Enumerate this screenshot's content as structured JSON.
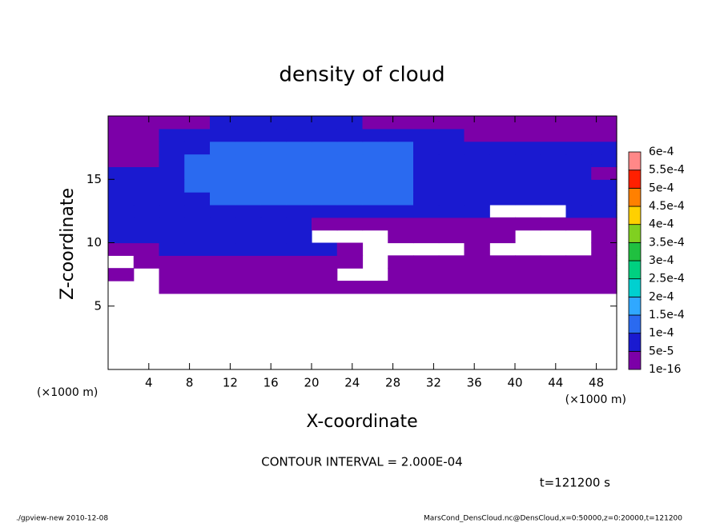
{
  "chart_data": {
    "type": "heatmap",
    "title": "density of cloud",
    "xlabel": "X-coordinate",
    "ylabel": "Z-coordinate",
    "x_unit": "(×1000 m)",
    "y_unit": "(×1000 m)",
    "xlim": [
      0,
      50
    ],
    "ylim": [
      0,
      20
    ],
    "xticks": [
      4,
      8,
      12,
      16,
      20,
      24,
      28,
      32,
      36,
      40,
      44,
      48
    ],
    "yticks": [
      5,
      10,
      15
    ],
    "x": [
      1.25,
      3.75,
      6.25,
      8.75,
      11.25,
      13.75,
      16.25,
      18.75,
      21.25,
      23.75,
      26.25,
      28.75,
      31.25,
      33.75,
      36.25,
      38.75,
      41.25,
      43.75,
      46.25,
      48.75
    ],
    "y": [
      0.5,
      1.5,
      2.5,
      3.5,
      4.5,
      5.5,
      6.5,
      7.5,
      8.5,
      9.5,
      10.5,
      11.5,
      12.5,
      13.5,
      14.5,
      15.5,
      16.5,
      17.5,
      18.5,
      19.5
    ],
    "z": [
      [
        null,
        null,
        null,
        null,
        null,
        null,
        null,
        null,
        null,
        null,
        null,
        null,
        null,
        null,
        null,
        null,
        null,
        null,
        null,
        null
      ],
      [
        null,
        null,
        null,
        null,
        null,
        null,
        null,
        null,
        null,
        null,
        null,
        null,
        null,
        null,
        null,
        null,
        null,
        null,
        null,
        null
      ],
      [
        null,
        null,
        null,
        null,
        null,
        null,
        null,
        null,
        null,
        null,
        null,
        null,
        null,
        null,
        null,
        null,
        null,
        null,
        null,
        null
      ],
      [
        null,
        null,
        null,
        null,
        null,
        null,
        null,
        null,
        null,
        null,
        null,
        null,
        null,
        null,
        null,
        null,
        null,
        null,
        null,
        null
      ],
      [
        null,
        null,
        null,
        null,
        null,
        null,
        null,
        null,
        null,
        null,
        null,
        null,
        null,
        null,
        null,
        null,
        null,
        null,
        null,
        null
      ],
      [
        null,
        null,
        null,
        null,
        null,
        null,
        null,
        null,
        null,
        null,
        null,
        null,
        null,
        null,
        null,
        null,
        null,
        null,
        null,
        null
      ],
      [
        null,
        null,
        3e-05,
        3e-05,
        3e-05,
        3e-05,
        3e-05,
        3e-05,
        3e-05,
        3e-05,
        3e-05,
        3e-05,
        3e-05,
        3e-05,
        3e-05,
        3e-05,
        3e-05,
        3e-05,
        3e-05,
        3e-05
      ],
      [
        3e-05,
        null,
        3e-05,
        3e-05,
        3e-05,
        3e-05,
        3e-05,
        3e-05,
        3e-05,
        null,
        null,
        3e-05,
        3e-05,
        3e-05,
        3e-05,
        3e-05,
        3e-05,
        3e-05,
        3e-05,
        3e-05
      ],
      [
        null,
        3e-05,
        3e-05,
        3e-05,
        3e-05,
        3e-05,
        3e-05,
        3e-05,
        3e-05,
        3e-05,
        null,
        3e-05,
        3e-05,
        3e-05,
        3e-05,
        3e-05,
        3e-05,
        3e-05,
        3e-05,
        3e-05
      ],
      [
        3e-05,
        3e-05,
        8e-05,
        8e-05,
        8e-05,
        8e-05,
        8e-05,
        8e-05,
        8e-05,
        3e-05,
        null,
        null,
        null,
        null,
        3e-05,
        null,
        null,
        null,
        null,
        3e-05
      ],
      [
        8e-05,
        8e-05,
        8e-05,
        8e-05,
        8e-05,
        8e-05,
        8e-05,
        8e-05,
        null,
        null,
        null,
        3e-05,
        3e-05,
        3e-05,
        3e-05,
        3e-05,
        null,
        null,
        null,
        3e-05
      ],
      [
        8e-05,
        8e-05,
        8e-05,
        8e-05,
        8e-05,
        8e-05,
        8e-05,
        8e-05,
        3e-05,
        3e-05,
        3e-05,
        3e-05,
        3e-05,
        3e-05,
        3e-05,
        3e-05,
        3e-05,
        3e-05,
        3e-05,
        3e-05
      ],
      [
        8e-05,
        8e-05,
        8e-05,
        8e-05,
        8e-05,
        8e-05,
        8e-05,
        8e-05,
        8e-05,
        8e-05,
        8e-05,
        8e-05,
        8e-05,
        8e-05,
        8e-05,
        null,
        null,
        null,
        8e-05,
        8e-05
      ],
      [
        8e-05,
        8e-05,
        8e-05,
        8e-05,
        0.00012,
        0.00012,
        0.00012,
        0.00012,
        0.00012,
        0.00012,
        0.00012,
        0.00012,
        8e-05,
        8e-05,
        8e-05,
        8e-05,
        8e-05,
        8e-05,
        8e-05,
        8e-05
      ],
      [
        8e-05,
        8e-05,
        8e-05,
        0.00012,
        0.00012,
        0.00012,
        0.00012,
        0.00012,
        0.00012,
        0.00012,
        0.00012,
        0.00012,
        8e-05,
        8e-05,
        8e-05,
        8e-05,
        8e-05,
        8e-05,
        8e-05,
        8e-05
      ],
      [
        8e-05,
        8e-05,
        8e-05,
        0.00012,
        0.00012,
        0.00012,
        0.00012,
        0.00012,
        0.00012,
        0.00012,
        0.00012,
        0.00012,
        8e-05,
        8e-05,
        8e-05,
        8e-05,
        8e-05,
        8e-05,
        8e-05,
        3e-05
      ],
      [
        3e-05,
        3e-05,
        8e-05,
        0.00012,
        0.00012,
        0.00012,
        0.00012,
        0.00012,
        0.00012,
        0.00012,
        0.00012,
        0.00012,
        8e-05,
        8e-05,
        8e-05,
        8e-05,
        8e-05,
        8e-05,
        8e-05,
        8e-05
      ],
      [
        3e-05,
        3e-05,
        8e-05,
        8e-05,
        0.00012,
        0.00012,
        0.00012,
        0.00012,
        0.00012,
        0.00012,
        0.00012,
        0.00012,
        8e-05,
        8e-05,
        8e-05,
        8e-05,
        8e-05,
        8e-05,
        8e-05,
        8e-05
      ],
      [
        3e-05,
        3e-05,
        8e-05,
        8e-05,
        8e-05,
        8e-05,
        8e-05,
        8e-05,
        8e-05,
        8e-05,
        8e-05,
        8e-05,
        8e-05,
        8e-05,
        3e-05,
        3e-05,
        3e-05,
        3e-05,
        3e-05,
        3e-05
      ],
      [
        3e-05,
        3e-05,
        3e-05,
        3e-05,
        8e-05,
        8e-05,
        8e-05,
        8e-05,
        8e-05,
        8e-05,
        3e-05,
        3e-05,
        3e-05,
        3e-05,
        3e-05,
        3e-05,
        3e-05,
        3e-05,
        3e-05,
        3e-05
      ]
    ],
    "colorbar": {
      "ticks": [
        {
          "value": 1e-16,
          "label": "1e-16"
        },
        {
          "value": 5e-05,
          "label": "5e-5"
        },
        {
          "value": 0.0001,
          "label": "1e-4"
        },
        {
          "value": 0.00015,
          "label": "1.5e-4"
        },
        {
          "value": 0.0002,
          "label": "2e-4"
        },
        {
          "value": 0.00025,
          "label": "2.5e-4"
        },
        {
          "value": 0.0003,
          "label": "3e-4"
        },
        {
          "value": 0.00035,
          "label": "3.5e-4"
        },
        {
          "value": 0.0004,
          "label": "4e-4"
        },
        {
          "value": 0.00045,
          "label": "4.5e-4"
        },
        {
          "value": 0.0005,
          "label": "5e-4"
        },
        {
          "value": 0.00055,
          "label": "5.5e-4"
        },
        {
          "value": 0.0006,
          "label": "6e-4"
        }
      ],
      "colors": [
        "#7c00a8",
        "#1a1ad0",
        "#2a6af0",
        "#30a8ff",
        "#00d0d0",
        "#00d080",
        "#20c040",
        "#80d020",
        "#ffd000",
        "#ff8000",
        "#ff2000",
        "#ff8888"
      ]
    },
    "contour_note": "CONTOUR INTERVAL = 2.000E-04",
    "time_label": "t=121200 s",
    "footer_left": "./gpview-new  2010-12-08",
    "footer_right": "MarsCond_DensCloud.nc@DensCloud,x=0:50000,z=0:20000,t=121200"
  }
}
